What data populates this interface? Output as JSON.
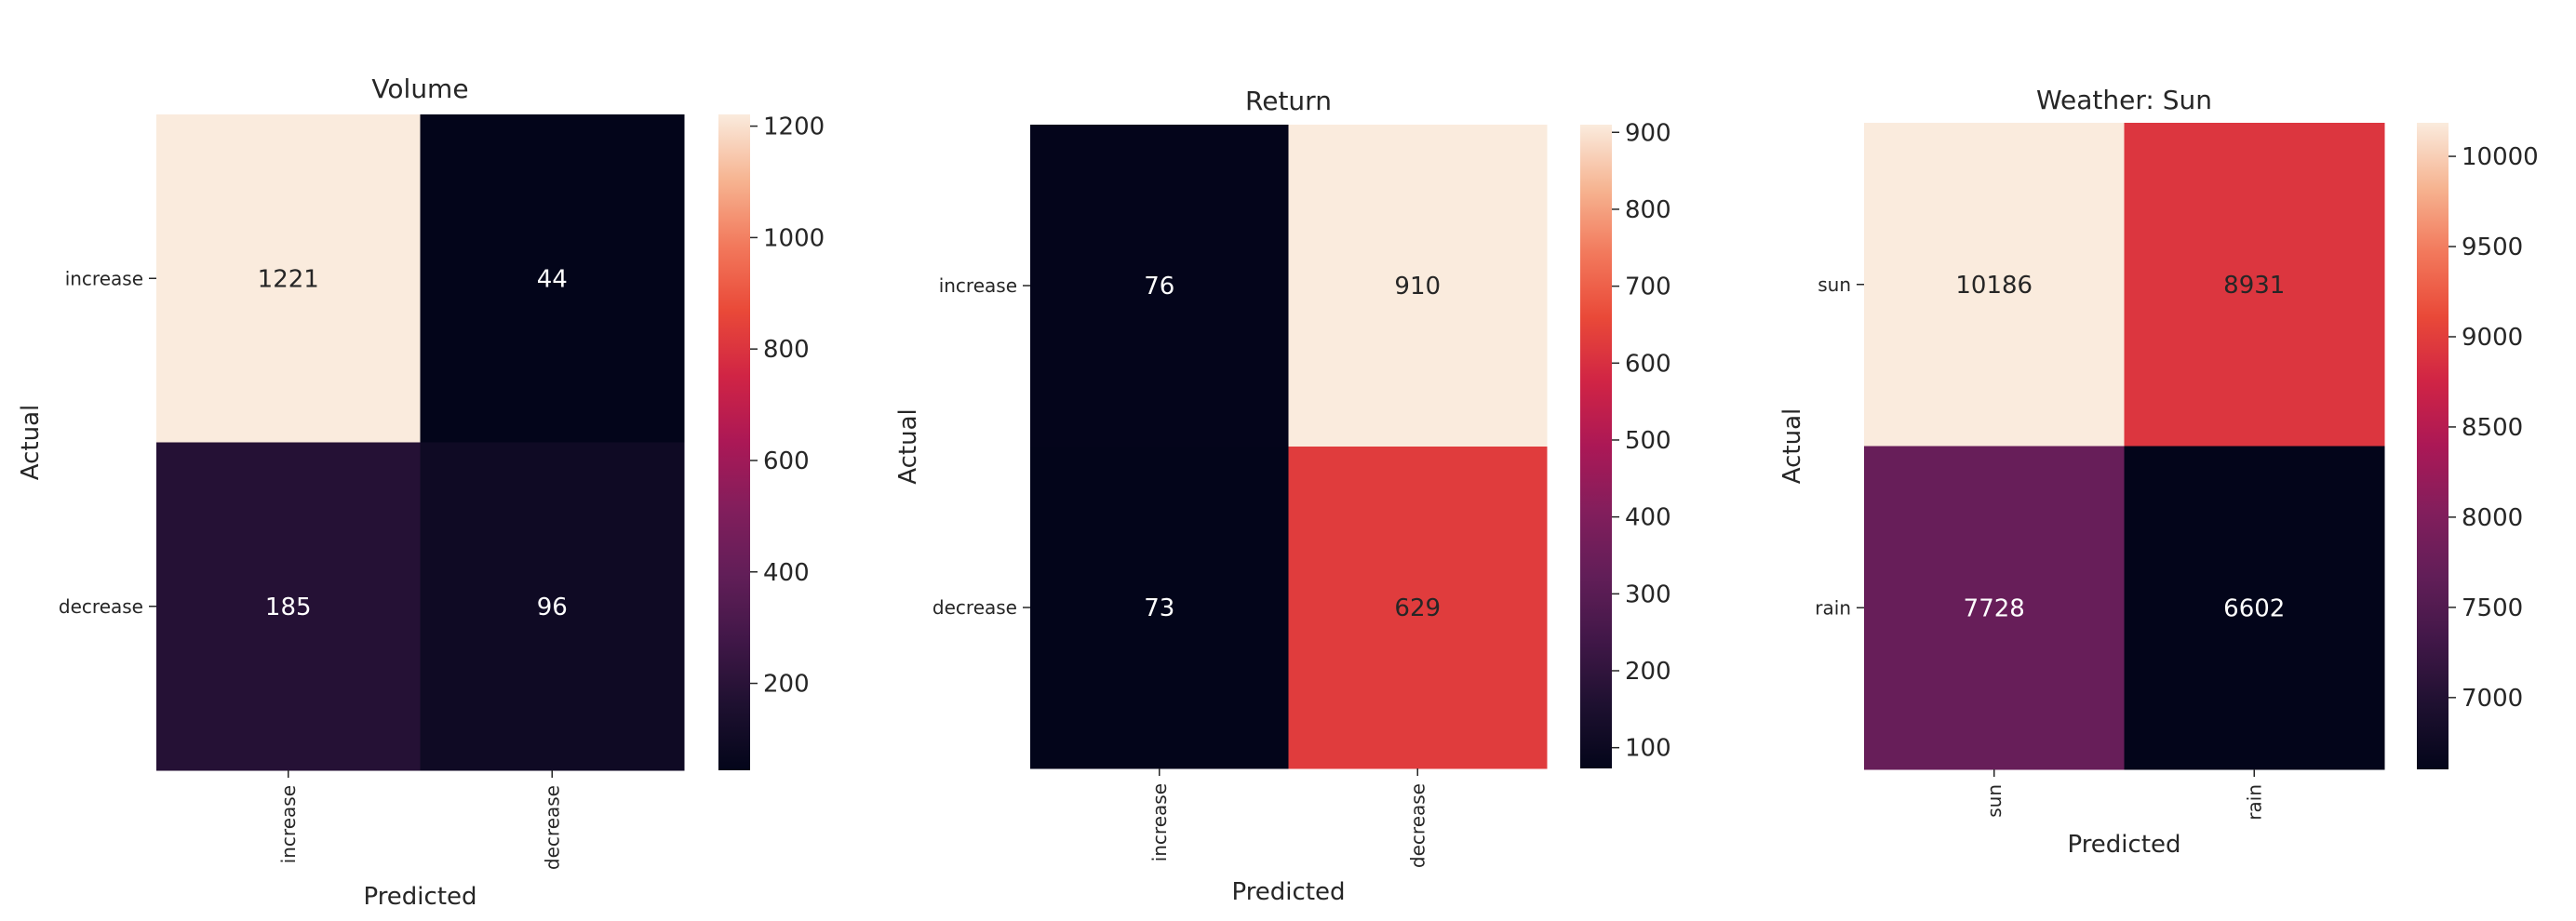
{
  "chart_data": [
    {
      "type": "heatmap",
      "title": "Volume",
      "xlabel": "Predicted",
      "ylabel": "Actual",
      "x_categories": [
        "increase",
        "decrease"
      ],
      "y_categories": [
        "increase",
        "decrease"
      ],
      "values": [
        [
          1221,
          44
        ],
        [
          185,
          96
        ]
      ],
      "colorbar": {
        "min": 44,
        "max": 1221,
        "ticks": [
          200,
          400,
          600,
          800,
          1000,
          1200
        ]
      },
      "colormap": "rocket"
    },
    {
      "type": "heatmap",
      "title": "Return",
      "xlabel": "Predicted",
      "ylabel": "Actual",
      "x_categories": [
        "increase",
        "decrease"
      ],
      "y_categories": [
        "increase",
        "decrease"
      ],
      "values": [
        [
          76,
          910
        ],
        [
          73,
          629
        ]
      ],
      "colorbar": {
        "min": 73,
        "max": 910,
        "ticks": [
          100,
          200,
          300,
          400,
          500,
          600,
          700,
          800,
          900
        ]
      },
      "colormap": "rocket"
    },
    {
      "type": "heatmap",
      "title": "Weather: Sun",
      "xlabel": "Predicted",
      "ylabel": "Actual",
      "x_categories": [
        "sun",
        "rain"
      ],
      "y_categories": [
        "sun",
        "rain"
      ],
      "values": [
        [
          10186,
          8931
        ],
        [
          7728,
          6602
        ]
      ],
      "colorbar": {
        "min": 6602,
        "max": 10186,
        "ticks": [
          7000,
          7500,
          8000,
          8500,
          9000,
          9500,
          10000
        ]
      },
      "colormap": "rocket"
    }
  ]
}
